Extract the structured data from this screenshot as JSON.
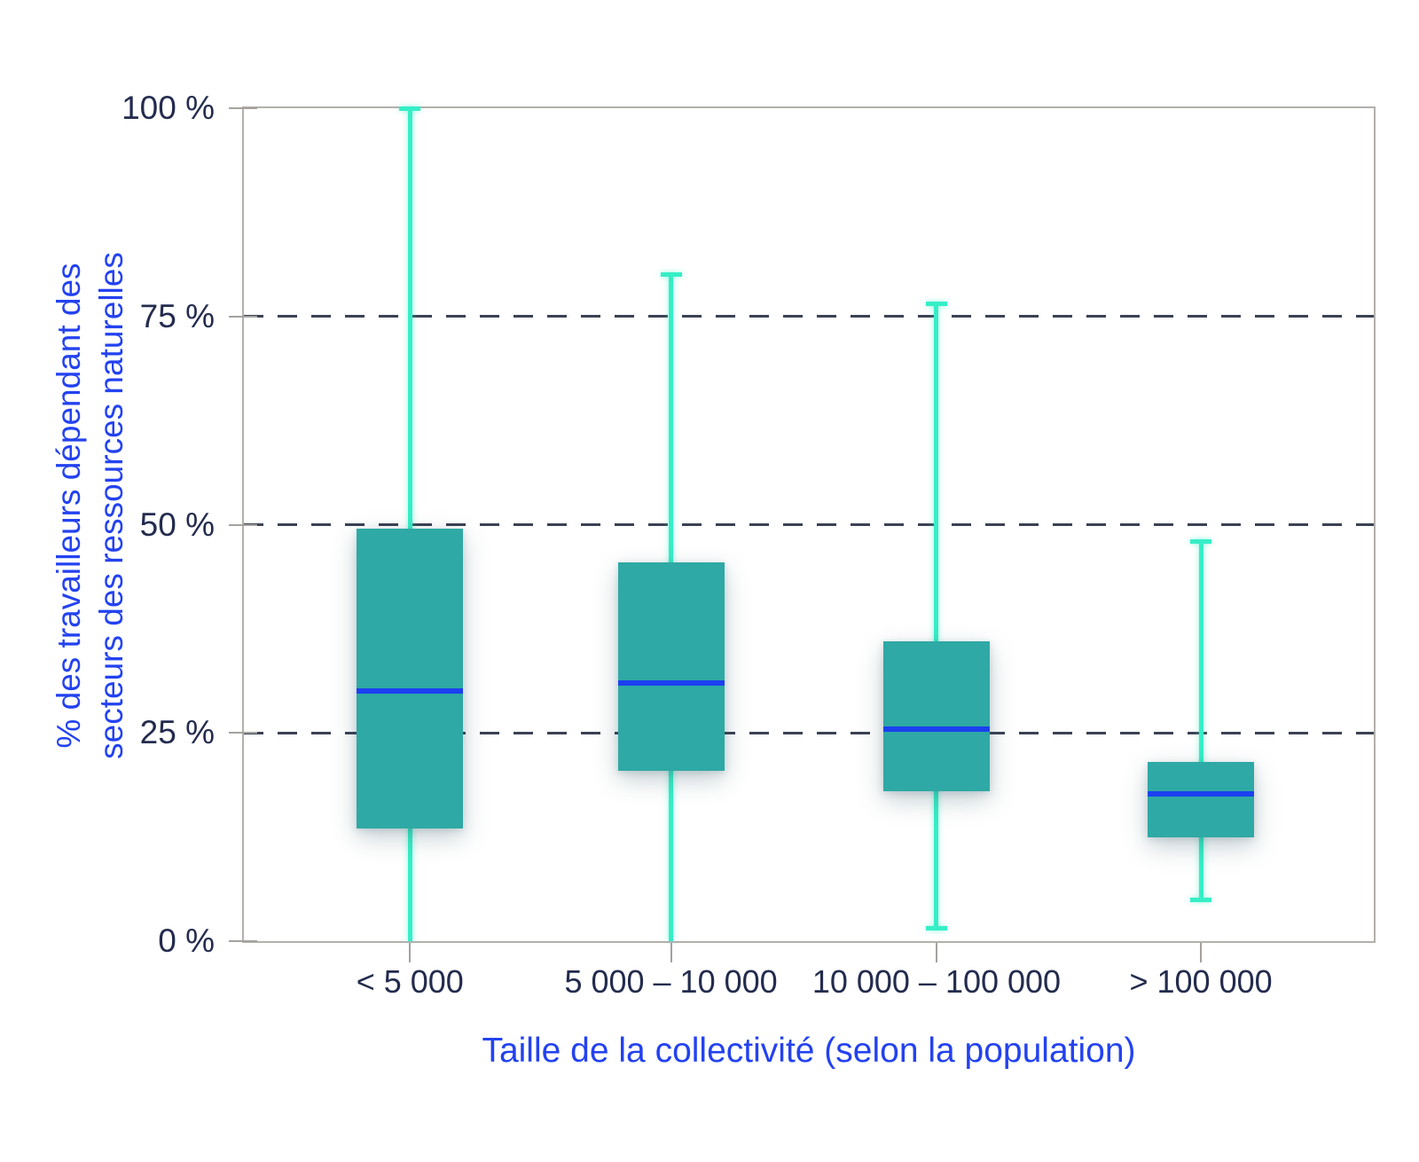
{
  "chart_data": {
    "type": "boxplot",
    "xlabel": "Taille de la collectivité (selon la population)",
    "ylabel_lines": [
      "% des travailleurs dépendant des",
      "secteurs des ressources naturelles"
    ],
    "ylim": [
      0,
      100
    ],
    "grid": "dashed horizontal at 25, 50, 75",
    "gridlines": [
      25,
      50,
      75
    ],
    "y_ticks": [
      {
        "value": 0,
        "label": "0 %"
      },
      {
        "value": 25,
        "label": "25 %"
      },
      {
        "value": 50,
        "label": "50 %"
      },
      {
        "value": 75,
        "label": "75 %"
      },
      {
        "value": 100,
        "label": "100 %"
      }
    ],
    "categories": [
      "< 5 000",
      "5 000 – 10 000",
      "10 000 – 100 000",
      "> 100 000"
    ],
    "boxes": [
      {
        "category": "< 5 000",
        "whisker_low": 0,
        "q1": 13.5,
        "median": 30,
        "q3": 49.5,
        "whisker_high": 100,
        "cap_low": false,
        "cap_high": true
      },
      {
        "category": "5 000 – 10 000",
        "whisker_low": 0,
        "q1": 20.5,
        "median": 31,
        "q3": 45.5,
        "whisker_high": 80,
        "cap_low": false,
        "cap_high": true
      },
      {
        "category": "10 000 – 100 000",
        "whisker_low": 1.5,
        "q1": 18,
        "median": 25.5,
        "q3": 36,
        "whisker_high": 76.5,
        "cap_low": true,
        "cap_high": true
      },
      {
        "category": "> 100 000",
        "whisker_low": 5,
        "q1": 12.5,
        "median": 17.7,
        "q3": 21.5,
        "whisker_high": 48,
        "cap_low": true,
        "cap_high": true
      }
    ],
    "colors": {
      "box_fill": "#2ea9a5",
      "median": "#1b40f0",
      "whisker": "#36eec7",
      "grid": "#3b4254",
      "tick_text": "#232c4e",
      "frame": "#b3b0ac",
      "axis_title": "#2342f0",
      "background": "#ffffff"
    }
  }
}
